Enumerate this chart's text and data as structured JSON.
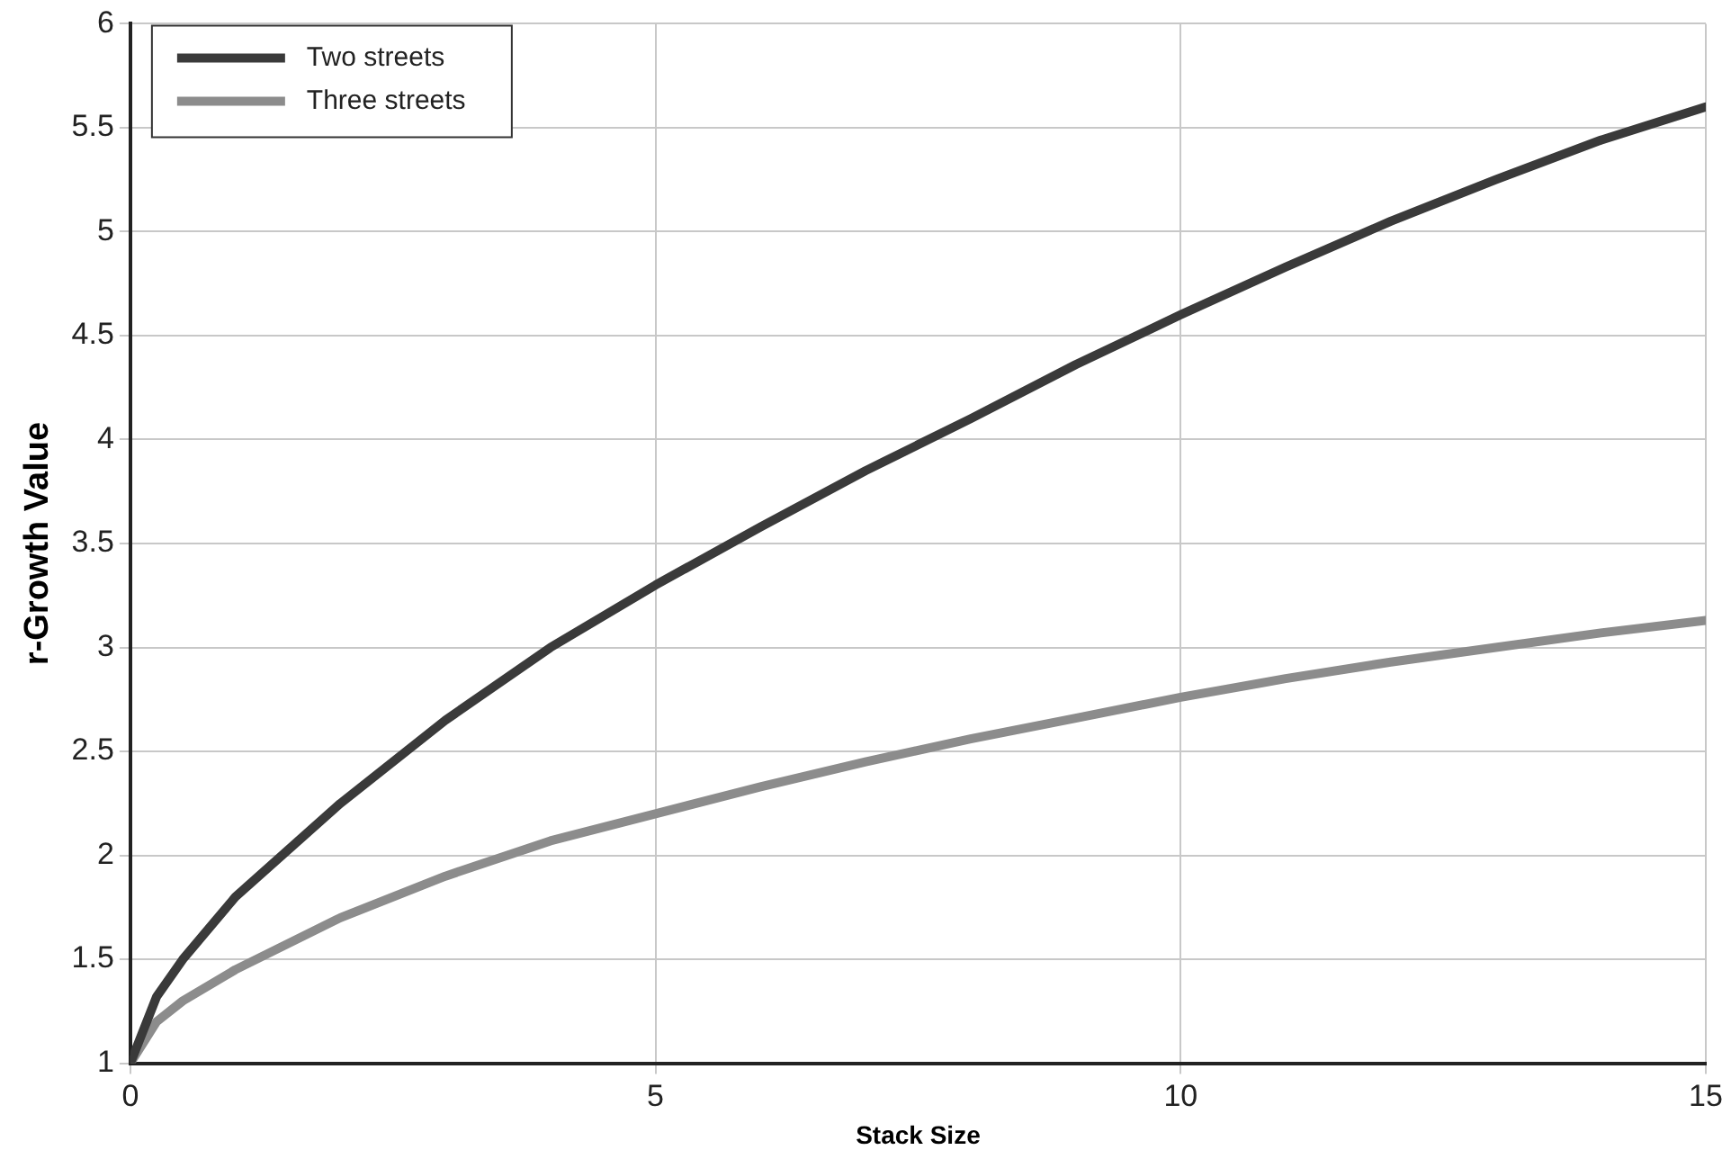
{
  "chart_data": {
    "type": "line",
    "xlabel": "Stack Size",
    "ylabel": "r-Growth Value",
    "x": [
      0,
      0.25,
      0.5,
      1,
      2,
      3,
      4,
      5,
      6,
      7,
      8,
      9,
      10,
      11,
      12,
      13,
      14,
      15
    ],
    "series": [
      {
        "name": "Two streets",
        "color": "#3a3a3a",
        "values": [
          1,
          1.32,
          1.5,
          1.8,
          2.25,
          2.65,
          3.0,
          3.3,
          3.58,
          3.85,
          4.1,
          4.36,
          4.6,
          4.83,
          5.05,
          5.25,
          5.44,
          5.6
        ]
      },
      {
        "name": "Three streets",
        "color": "#8c8c8c",
        "values": [
          1,
          1.2,
          1.3,
          1.45,
          1.7,
          1.9,
          2.07,
          2.2,
          2.33,
          2.45,
          2.56,
          2.66,
          2.76,
          2.85,
          2.93,
          3.0,
          3.07,
          3.13
        ]
      }
    ],
    "xlim": [
      0,
      15
    ],
    "xticks": [
      0,
      5,
      10,
      15
    ],
    "ylim": [
      1,
      6
    ],
    "yticks": [
      1,
      1.5,
      2,
      2.5,
      3,
      3.5,
      4,
      4.5,
      5,
      5.5,
      6
    ],
    "grid": true,
    "legend": "top left",
    "marker": "none",
    "line_style": "solid"
  }
}
